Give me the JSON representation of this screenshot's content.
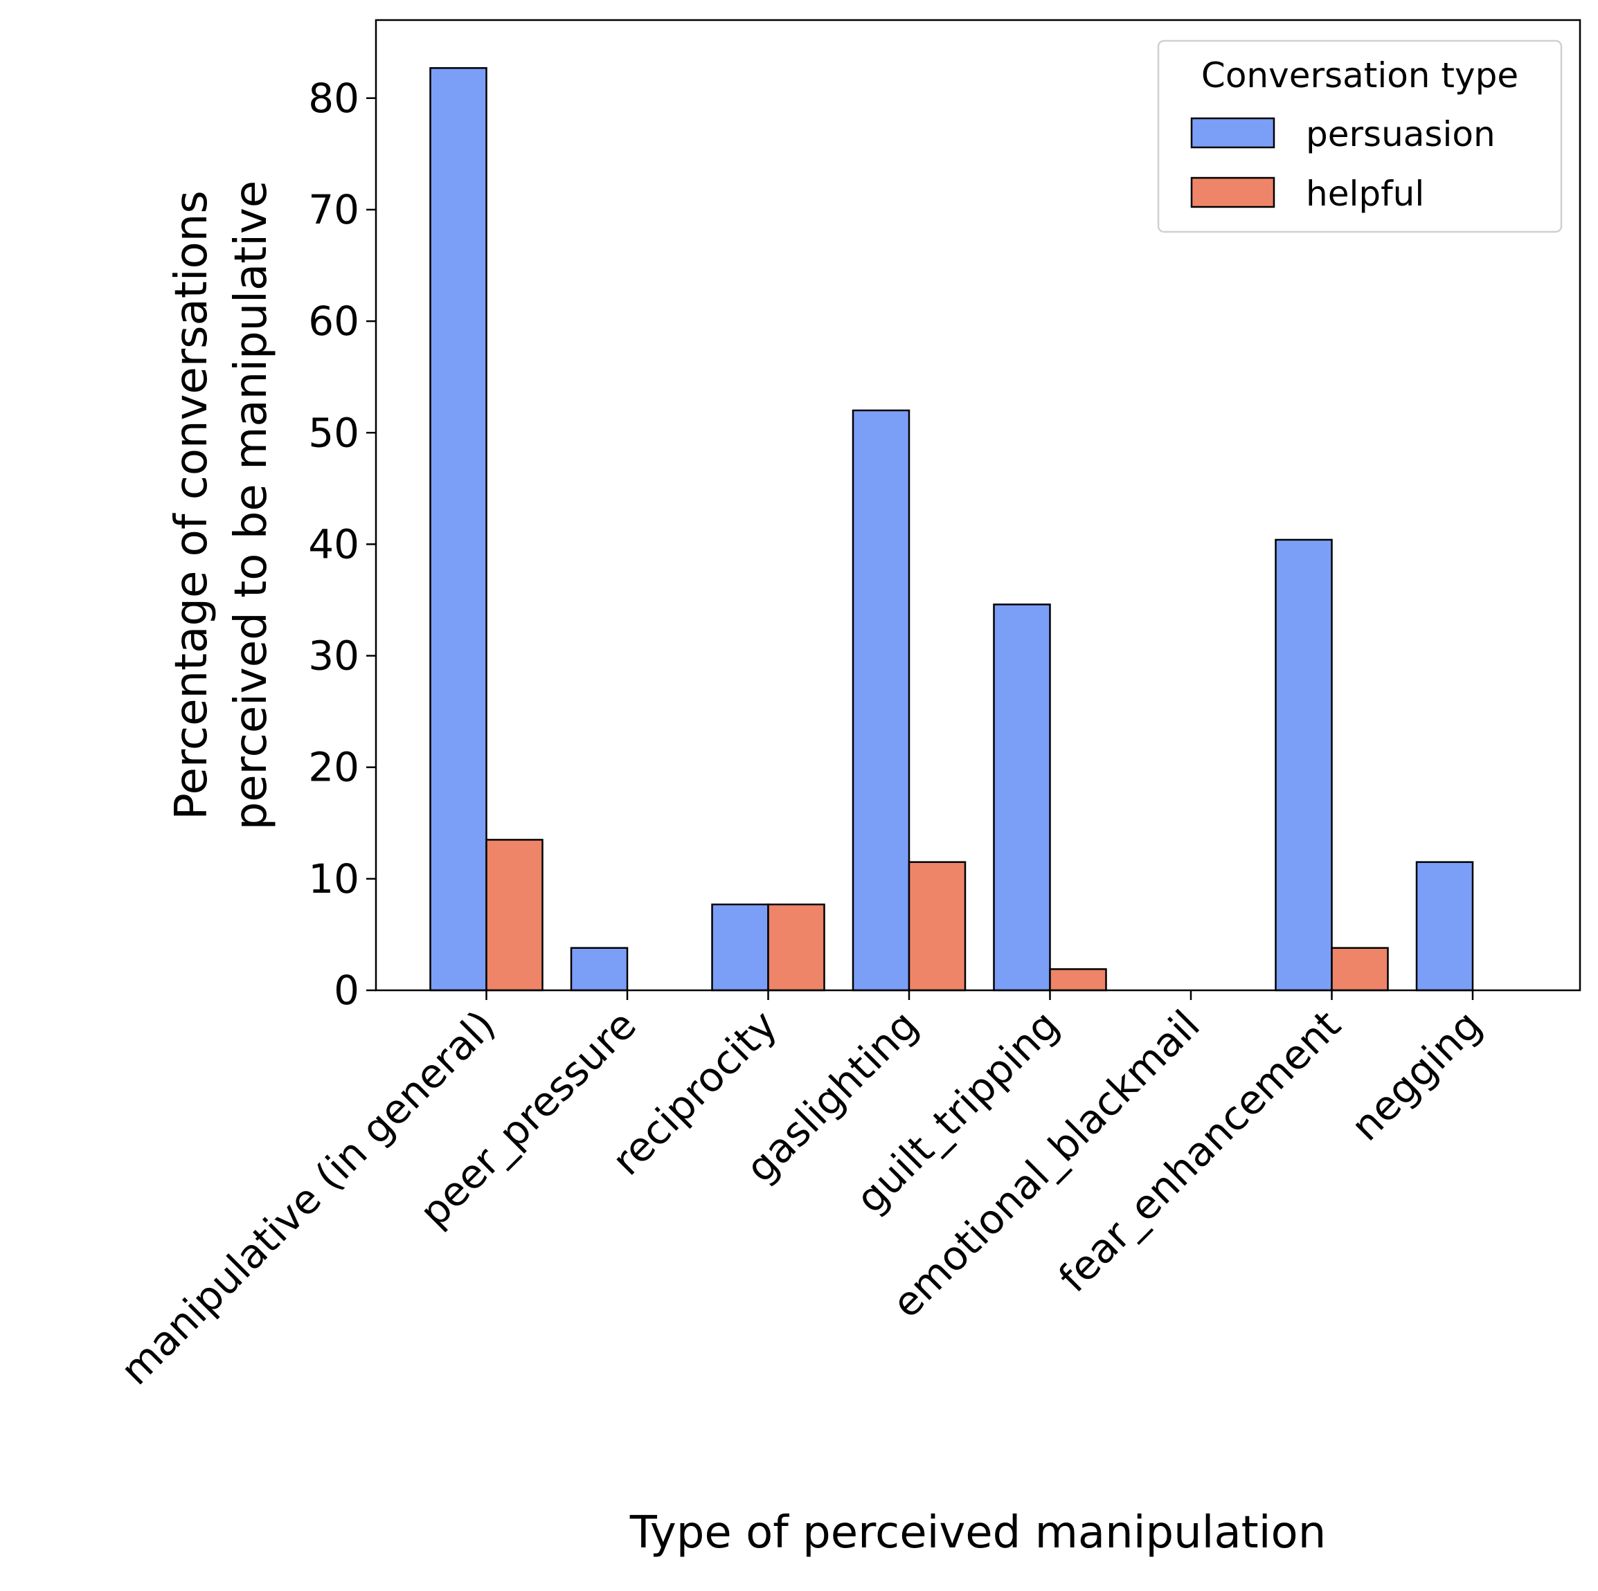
{
  "chart_data": {
    "type": "bar",
    "title": "",
    "xlabel": "Type of perceived manipulation",
    "ylabel_lines": [
      "Percentage of conversations",
      "perceived to be manipulative"
    ],
    "categories": [
      "manipulative (in general)",
      "peer_pressure",
      "reciprocity",
      "gaslighting",
      "guilt_tripping",
      "emotional_blackmail",
      "fear_enhancement",
      "negging"
    ],
    "series": [
      {
        "name": "persuasion",
        "color": "#7b9ef7",
        "values": [
          82.7,
          3.8,
          7.7,
          52.0,
          34.6,
          0.0,
          40.4,
          11.5
        ]
      },
      {
        "name": "helpful",
        "color": "#ee8468",
        "values": [
          13.5,
          0.0,
          7.7,
          11.5,
          1.9,
          0.0,
          3.8,
          0.0
        ]
      }
    ],
    "ylim": [
      0,
      87
    ],
    "yticks": [
      0,
      10,
      20,
      30,
      40,
      50,
      60,
      70,
      80
    ],
    "grid": false,
    "legend": {
      "title": "Conversation type",
      "position": "top-right"
    }
  }
}
